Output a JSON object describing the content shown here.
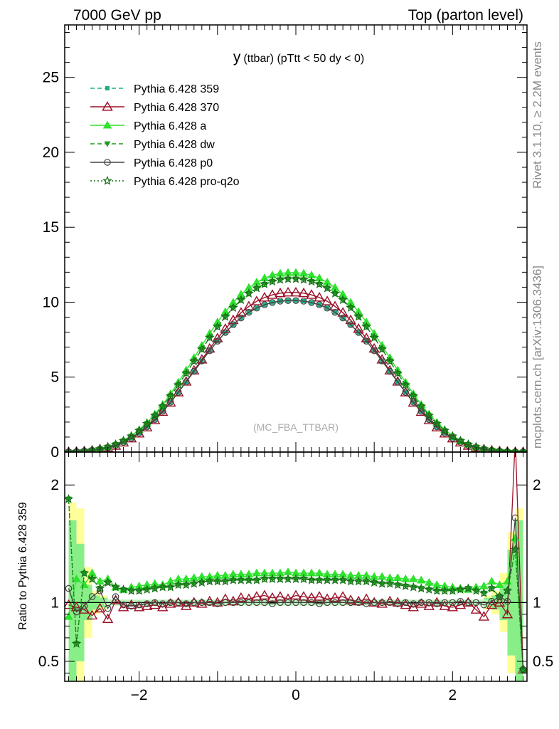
{
  "header": {
    "left": "7000 GeV pp",
    "right": "Top (parton level)"
  },
  "side_text": {
    "rivet": "Rivet 3.1.10, ≥ 2.2M events",
    "mcplots": "mcplots.cern.ch [arXiv:1306.3436]"
  },
  "chart_data": [
    {
      "type": "line",
      "title_main": "y",
      "title_rest": "(ttbar) (pTtt < 50 dy < 0)",
      "watermark": "(MC_FBA_TTBAR)",
      "xlabel": "",
      "ylabel": "",
      "xlim": [
        -2.95,
        2.95
      ],
      "ylim": [
        0,
        28.5
      ],
      "yticks": [
        0,
        5,
        10,
        15,
        20,
        25
      ],
      "grid": false,
      "legend_position": "top-left",
      "x": [
        -2.9,
        -2.8,
        -2.7,
        -2.6,
        -2.5,
        -2.4,
        -2.3,
        -2.2,
        -2.1,
        -2.0,
        -1.9,
        -1.8,
        -1.7,
        -1.6,
        -1.5,
        -1.4,
        -1.3,
        -1.2,
        -1.1,
        -1.0,
        -0.9,
        -0.8,
        -0.7,
        -0.6,
        -0.5,
        -0.4,
        -0.3,
        -0.2,
        -0.1,
        0.0,
        0.1,
        0.2,
        0.3,
        0.4,
        0.5,
        0.6,
        0.7,
        0.8,
        0.9,
        1.0,
        1.1,
        1.2,
        1.3,
        1.4,
        1.5,
        1.6,
        1.7,
        1.8,
        1.9,
        2.0,
        2.1,
        2.2,
        2.3,
        2.4,
        2.5,
        2.6,
        2.7,
        2.8,
        2.9
      ],
      "series": [
        {
          "name": "Pythia 6.428 359",
          "color": "#1fae85",
          "dash": "6,4",
          "marker": "square-filled",
          "values": [
            0.01,
            0.03,
            0.06,
            0.11,
            0.19,
            0.3,
            0.45,
            0.66,
            0.93,
            1.27,
            1.68,
            2.17,
            2.72,
            3.33,
            3.99,
            4.68,
            5.38,
            6.08,
            6.76,
            7.4,
            7.98,
            8.5,
            8.95,
            9.32,
            9.61,
            9.83,
            9.98,
            10.07,
            10.11,
            10.11,
            10.07,
            9.98,
            9.83,
            9.61,
            9.32,
            8.95,
            8.5,
            7.98,
            7.4,
            6.76,
            6.08,
            5.38,
            4.68,
            3.99,
            3.33,
            2.72,
            2.17,
            1.68,
            1.27,
            0.93,
            0.66,
            0.45,
            0.3,
            0.19,
            0.11,
            0.06,
            0.03,
            0.01,
            0.005
          ]
        },
        {
          "name": "Pythia 6.428 370",
          "color": "#9b1027",
          "dash": "",
          "marker": "triangle-open",
          "values": [
            0.01,
            0.03,
            0.06,
            0.11,
            0.19,
            0.29,
            0.42,
            0.64,
            0.91,
            1.24,
            1.65,
            2.13,
            2.68,
            3.3,
            3.98,
            4.7,
            5.44,
            6.17,
            6.9,
            7.59,
            8.22,
            8.8,
            9.3,
            9.72,
            10.06,
            10.31,
            10.49,
            10.6,
            10.65,
            10.65,
            10.6,
            10.49,
            10.31,
            10.06,
            9.72,
            9.3,
            8.8,
            8.22,
            7.59,
            6.9,
            6.17,
            5.44,
            4.7,
            3.98,
            3.3,
            2.68,
            2.13,
            1.65,
            1.24,
            0.91,
            0.64,
            0.42,
            0.29,
            0.19,
            0.11,
            0.06,
            0.03,
            0.01,
            0.005
          ]
        },
        {
          "name": "Pythia 6.428 a",
          "color": "#2ee22e",
          "dash": "",
          "marker": "triangle-filled",
          "values": [
            0.01,
            0.03,
            0.07,
            0.13,
            0.22,
            0.35,
            0.53,
            0.78,
            1.09,
            1.48,
            1.96,
            2.52,
            3.16,
            3.88,
            4.65,
            5.46,
            6.29,
            7.11,
            7.91,
            8.67,
            9.36,
            9.98,
            10.52,
            10.97,
            11.33,
            11.61,
            11.8,
            11.92,
            11.97,
            11.97,
            11.92,
            11.8,
            11.61,
            11.33,
            10.97,
            10.52,
            9.98,
            9.36,
            8.67,
            7.91,
            7.11,
            6.29,
            5.46,
            4.65,
            3.88,
            3.16,
            2.52,
            1.96,
            1.48,
            1.09,
            0.78,
            0.53,
            0.35,
            0.22,
            0.13,
            0.07,
            0.03,
            0.01,
            0.005
          ]
        },
        {
          "name": "Pythia 6.428 dw",
          "color": "#1f9a1f",
          "dash": "6,4",
          "marker": "triangle-down-filled",
          "values": [
            0.01,
            0.03,
            0.07,
            0.13,
            0.21,
            0.34,
            0.51,
            0.75,
            1.05,
            1.43,
            1.89,
            2.43,
            3.05,
            3.74,
            4.48,
            5.26,
            6.06,
            6.86,
            7.63,
            8.36,
            9.03,
            9.63,
            10.15,
            10.58,
            10.93,
            11.2,
            11.38,
            11.5,
            11.55,
            11.55,
            11.5,
            11.38,
            11.2,
            10.93,
            10.58,
            10.15,
            9.63,
            9.03,
            8.36,
            7.63,
            6.86,
            6.06,
            5.26,
            4.48,
            3.74,
            3.05,
            2.43,
            1.89,
            1.43,
            1.05,
            0.75,
            0.51,
            0.34,
            0.21,
            0.13,
            0.07,
            0.03,
            0.01,
            0.005
          ]
        },
        {
          "name": "Pythia 6.428 p0",
          "color": "#444444",
          "dash": "",
          "marker": "circle-open",
          "values": [
            0.01,
            0.03,
            0.06,
            0.11,
            0.19,
            0.3,
            0.45,
            0.66,
            0.93,
            1.27,
            1.68,
            2.17,
            2.72,
            3.33,
            3.99,
            4.68,
            5.38,
            6.08,
            6.76,
            7.4,
            7.98,
            8.5,
            8.95,
            9.32,
            9.61,
            9.83,
            9.98,
            10.07,
            10.11,
            10.11,
            10.07,
            9.98,
            9.83,
            9.61,
            9.32,
            8.95,
            8.5,
            7.98,
            7.4,
            6.76,
            6.08,
            5.38,
            4.68,
            3.99,
            3.33,
            2.72,
            2.17,
            1.68,
            1.27,
            0.93,
            0.66,
            0.45,
            0.3,
            0.19,
            0.11,
            0.06,
            0.03,
            0.01,
            0.005
          ]
        },
        {
          "name": "Pythia 6.428 pro-q2o",
          "color": "#146e14",
          "dash": "2,3",
          "marker": "star-open",
          "values": [
            0.01,
            0.03,
            0.07,
            0.13,
            0.21,
            0.34,
            0.51,
            0.75,
            1.05,
            1.43,
            1.89,
            2.43,
            3.05,
            3.74,
            4.48,
            5.26,
            6.06,
            6.86,
            7.63,
            8.36,
            9.03,
            9.63,
            10.15,
            10.58,
            10.93,
            11.2,
            11.38,
            11.5,
            11.55,
            11.55,
            11.5,
            11.38,
            11.2,
            10.93,
            10.58,
            10.15,
            9.63,
            9.03,
            8.36,
            7.63,
            6.86,
            6.06,
            5.26,
            4.48,
            3.74,
            3.05,
            2.43,
            1.89,
            1.43,
            1.05,
            0.75,
            0.51,
            0.34,
            0.21,
            0.13,
            0.07,
            0.03,
            0.01,
            0.005
          ]
        }
      ]
    },
    {
      "type": "line",
      "ylabel": "Ratio to Pythia 6.428 359",
      "xlabel": "",
      "xlim": [
        -2.95,
        2.95
      ],
      "ylim": [
        0.33,
        2.28
      ],
      "yticks": [
        0.5,
        1,
        2
      ],
      "xticks": [
        -2,
        0,
        2
      ],
      "reference_line": 1,
      "grid": false,
      "band": {
        "x": [
          -2.85,
          -2.75,
          -2.65,
          -2.55,
          -2.45,
          2.45,
          2.55,
          2.65,
          2.75,
          2.85
        ],
        "green_half": [
          0.7,
          0.5,
          0.15,
          0.06,
          0.04,
          0.04,
          0.06,
          0.15,
          0.45,
          0.7
        ],
        "yellow_half": [
          0.85,
          0.8,
          0.3,
          0.1,
          0.06,
          0.06,
          0.1,
          0.25,
          0.6,
          0.8
        ]
      },
      "series": [
        {
          "name": "Pythia 6.428 370",
          "values": [
            0.98,
            0.96,
            0.94,
            0.89,
            0.95,
            0.86,
            1.02,
            0.96,
            0.98,
            0.96,
            0.97,
            0.98,
            0.96,
            0.99,
            1.0,
            0.97,
            1.0,
            0.99,
            1.01,
            1.0,
            1.03,
            1.01,
            1.04,
            1.03,
            1.05,
            1.06,
            1.04,
            1.05,
            1.03,
            1.06,
            1.05,
            1.04,
            1.05,
            1.03,
            1.04,
            1.05,
            1.02,
            1.01,
            1.03,
            1.0,
            0.99,
            1.01,
            1.0,
            0.98,
            0.96,
            0.99,
            0.97,
            1.0,
            0.97,
            0.96,
            0.98,
            1.0,
            0.94,
            0.88,
            0.98,
            1.0,
            0.9,
            2.4,
            0.43
          ]
        },
        {
          "name": "Pythia 6.428 a",
          "values": [
            0.88,
            1.2,
            1.15,
            1.25,
            1.18,
            1.2,
            1.13,
            1.11,
            1.13,
            1.14,
            1.15,
            1.16,
            1.15,
            1.18,
            1.2,
            1.2,
            1.21,
            1.22,
            1.22,
            1.23,
            1.23,
            1.24,
            1.24,
            1.24,
            1.25,
            1.25,
            1.25,
            1.25,
            1.26,
            1.25,
            1.25,
            1.25,
            1.25,
            1.24,
            1.24,
            1.24,
            1.23,
            1.23,
            1.23,
            1.22,
            1.22,
            1.21,
            1.21,
            1.2,
            1.2,
            1.19,
            1.17,
            1.15,
            1.14,
            1.13,
            1.12,
            1.11,
            1.13,
            1.14,
            1.18,
            1.15,
            1.18,
            1.55,
            0.43
          ]
        },
        {
          "name": "Pythia 6.428 dw",
          "values": [
            1.88,
            0.65,
            1.25,
            1.2,
            1.12,
            1.17,
            1.13,
            1.11,
            1.1,
            1.1,
            1.11,
            1.12,
            1.13,
            1.13,
            1.15,
            1.15,
            1.16,
            1.17,
            1.18,
            1.18,
            1.18,
            1.19,
            1.19,
            1.19,
            1.19,
            1.2,
            1.2,
            1.2,
            1.2,
            1.2,
            1.2,
            1.19,
            1.19,
            1.19,
            1.19,
            1.19,
            1.18,
            1.18,
            1.18,
            1.17,
            1.16,
            1.16,
            1.15,
            1.14,
            1.13,
            1.12,
            1.11,
            1.1,
            1.1,
            1.1,
            1.11,
            1.12,
            1.1,
            1.08,
            1.12,
            1.05,
            1.1,
            1.45,
            0.43
          ]
        },
        {
          "name": "Pythia 6.428 p0",
          "values": [
            1.12,
            0.92,
            0.97,
            1.05,
            1.1,
            0.95,
            1.05,
            0.98,
            0.97,
            0.98,
            0.99,
            1.0,
            0.99,
            1.0,
            1.0,
            0.99,
            1.0,
            1.0,
            1.0,
            0.99,
            1.0,
            1.0,
            1.0,
            1.0,
            1.0,
            1.0,
            0.99,
            1.0,
            1.0,
            1.0,
            1.0,
            1.0,
            0.99,
            1.0,
            1.0,
            1.0,
            1.0,
            1.0,
            0.99,
            1.0,
            1.0,
            1.0,
            0.99,
            1.0,
            0.99,
            1.0,
            1.0,
            0.99,
            1.0,
            1.0,
            1.01,
            1.0,
            1.0,
            0.98,
            1.01,
            1.05,
            1.01,
            1.72,
            0.43
          ]
        },
        {
          "name": "Pythia 6.428 pro-q2o",
          "values": [
            1.88,
            0.65,
            1.25,
            1.2,
            1.12,
            1.17,
            1.13,
            1.11,
            1.1,
            1.1,
            1.11,
            1.12,
            1.13,
            1.13,
            1.15,
            1.15,
            1.16,
            1.17,
            1.18,
            1.18,
            1.18,
            1.19,
            1.19,
            1.19,
            1.19,
            1.2,
            1.2,
            1.2,
            1.2,
            1.2,
            1.2,
            1.19,
            1.19,
            1.19,
            1.19,
            1.19,
            1.18,
            1.18,
            1.18,
            1.17,
            1.16,
            1.16,
            1.15,
            1.14,
            1.13,
            1.12,
            1.11,
            1.1,
            1.1,
            1.1,
            1.11,
            1.12,
            1.1,
            1.08,
            1.12,
            1.05,
            1.1,
            1.45,
            0.43
          ]
        }
      ]
    }
  ]
}
